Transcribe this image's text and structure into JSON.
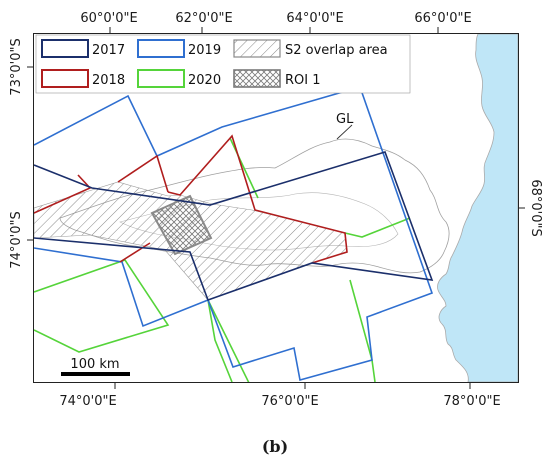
{
  "map": {
    "top_axis_labels": [
      "60°0'0\"E",
      "62°0'0\"E",
      "64°0'0\"E",
      "66°0'0\"E"
    ],
    "bottom_axis_labels": [
      "74°0'0\"E",
      "76°0'0\"E",
      "78°0'0\"E"
    ],
    "left_axis_labels": [
      "73°0'0\"S",
      "74°0'0\"S"
    ],
    "right_axis_labels": [
      "68°0'0\"S"
    ],
    "feature_label": "GL",
    "scale_bar_label": "100 km",
    "colors": {
      "2017": "#1b2f6b",
      "2018": "#b01e1e",
      "2019": "#2f6fd0",
      "2020": "#55d43a",
      "ocean": "#bfe6f7",
      "coast": "#999999",
      "overlap_hatch": "#888888",
      "roi": "#7a7a7a"
    }
  },
  "legend": {
    "items": [
      {
        "label": "2017",
        "color": "#1b2f6b",
        "style": "outline"
      },
      {
        "label": "2019",
        "color": "#2f6fd0",
        "style": "outline"
      },
      {
        "label": "S2 overlap area",
        "color": "#888888",
        "style": "diagonal-hatch"
      },
      {
        "label": "2018",
        "color": "#b01e1e",
        "style": "outline"
      },
      {
        "label": "2020",
        "color": "#55d43a",
        "style": "outline"
      },
      {
        "label": "ROI 1",
        "color": "#7a7a7a",
        "style": "cross-hatch"
      }
    ]
  },
  "caption": "(b)"
}
